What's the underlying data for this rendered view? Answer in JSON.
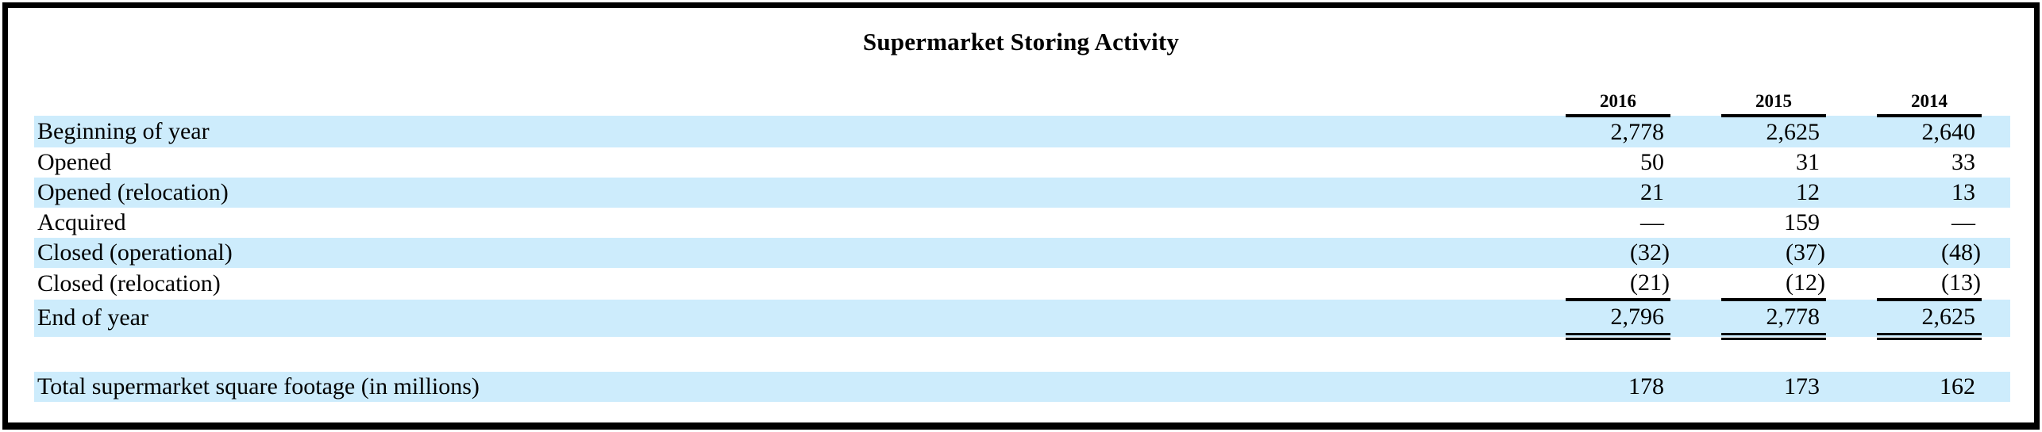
{
  "page_title": "Supermarket Storing Activity",
  "colors": {
    "row_stripe": "#cdecfc",
    "frame_border": "#000000",
    "text": "#000000"
  },
  "table": {
    "year_headers": [
      "2016",
      "2015",
      "2014"
    ],
    "rows": [
      {
        "label": "Beginning of year",
        "values": [
          "2,778",
          "2,625",
          "2,640"
        ]
      },
      {
        "label": "Opened",
        "values": [
          "50",
          "31",
          "33"
        ]
      },
      {
        "label": "Opened (relocation)",
        "values": [
          "21",
          "12",
          "13"
        ]
      },
      {
        "label": "Acquired",
        "values": [
          "—",
          "159",
          "—"
        ]
      },
      {
        "label": "Closed (operational)",
        "values": [
          "(32)",
          "(37)",
          "(48)"
        ]
      },
      {
        "label": "Closed (relocation)",
        "values": [
          "(21)",
          "(12)",
          "(13)"
        ]
      },
      {
        "label": "End of year",
        "values": [
          "2,796",
          "2,778",
          "2,625"
        ]
      }
    ],
    "summary_row": {
      "label": "Total supermarket square footage (in millions)",
      "values": [
        "178",
        "173",
        "162"
      ]
    }
  }
}
